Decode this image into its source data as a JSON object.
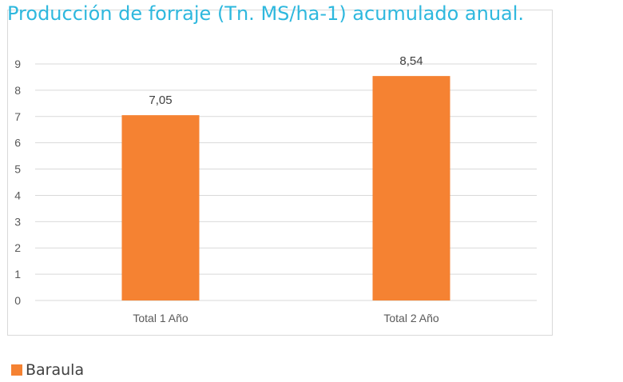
{
  "chart_data": {
    "type": "bar",
    "title": "Producción de forraje (Tn. MS/ha-1) acumulado anual.",
    "categories": [
      "Total 1 Año",
      "Total 2 Año"
    ],
    "series": [
      {
        "name": "Baraula",
        "values": [
          7.05,
          8.54
        ],
        "value_labels": [
          "7,05",
          "8,54"
        ],
        "color": "#f58232"
      }
    ],
    "ylim": [
      0,
      9
    ],
    "yticks": [
      "0",
      "1",
      "2",
      "3",
      "4",
      "5",
      "6",
      "7",
      "8",
      "9"
    ],
    "grid": true,
    "legend_position": "bottom-left",
    "colors": {
      "title": "#2eb8de",
      "gridline": "#d9d9d9",
      "tick_text": "#595959",
      "frame": "#d9d9d9"
    }
  }
}
